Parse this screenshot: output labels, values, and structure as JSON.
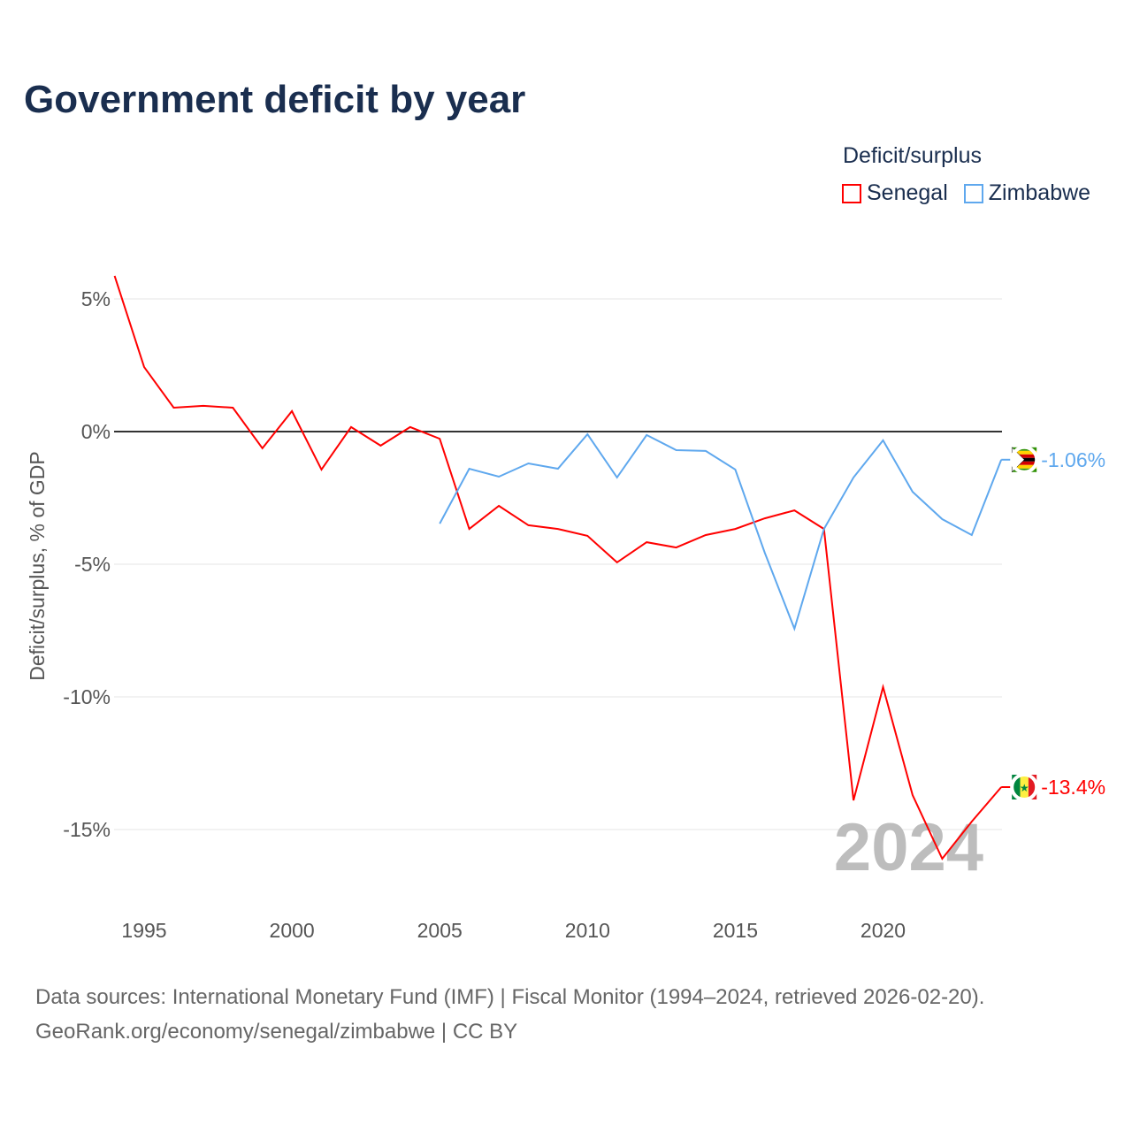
{
  "title": "Government deficit by year",
  "legend": {
    "title": "Deficit/surplus",
    "items": [
      {
        "name": "Senegal",
        "color": "#ff0000"
      },
      {
        "name": "Zimbabwe",
        "color": "#5fa8ee"
      }
    ]
  },
  "footer": {
    "line1": "Data sources: International Monetary Fund (IMF) | Fiscal Monitor (1994–2024, retrieved 2026-02-20).",
    "line2": "GeoRank.org/economy/senegal/zimbabwe | CC BY"
  },
  "chart_data": {
    "type": "line",
    "title": "Government deficit by year",
    "ylabel": "Deficit/surplus, % of GDP",
    "xlabel": "",
    "xlim": [
      1994,
      2024
    ],
    "ylim": [
      -17.5,
      6
    ],
    "yticks": [
      5,
      0,
      -5,
      -10,
      -15
    ],
    "ytick_labels": [
      "5%",
      "0%",
      "-5%",
      "-10%",
      "-15%"
    ],
    "xticks": [
      1995,
      2000,
      2005,
      2010,
      2015,
      2020
    ],
    "xtick_labels": [
      "1995",
      "2000",
      "2005",
      "2010",
      "2015",
      "2020"
    ],
    "watermark_year": "2024",
    "series": [
      {
        "name": "Senegal",
        "color": "#ff0000",
        "end_label": "-13.4%",
        "x": [
          1994,
          1995,
          1996,
          1997,
          1998,
          1999,
          2000,
          2001,
          2002,
          2003,
          2004,
          2005,
          2006,
          2007,
          2008,
          2009,
          2010,
          2011,
          2012,
          2013,
          2014,
          2015,
          2016,
          2017,
          2018,
          2019,
          2020,
          2021,
          2022,
          2023,
          2024
        ],
        "values": [
          5.87,
          2.43,
          0.9,
          0.97,
          0.9,
          -0.63,
          0.77,
          -1.43,
          0.17,
          -0.53,
          0.17,
          -0.27,
          -3.67,
          -2.8,
          -3.53,
          -3.67,
          -3.93,
          -4.93,
          -4.17,
          -4.37,
          -3.9,
          -3.67,
          -3.27,
          -2.97,
          -3.67,
          -13.9,
          -9.63,
          -13.7,
          -16.1,
          -14.7,
          -13.4
        ]
      },
      {
        "name": "Zimbabwe",
        "color": "#5fa8ee",
        "end_label": "-1.06%",
        "x": [
          2005,
          2006,
          2007,
          2008,
          2009,
          2010,
          2011,
          2012,
          2013,
          2014,
          2015,
          2016,
          2017,
          2018,
          2019,
          2020,
          2021,
          2022,
          2023,
          2024
        ],
        "values": [
          -3.47,
          -1.4,
          -1.7,
          -1.2,
          -1.4,
          -0.1,
          -1.73,
          -0.13,
          -0.7,
          -0.73,
          -1.43,
          -4.57,
          -7.43,
          -3.67,
          -1.73,
          -0.33,
          -2.27,
          -3.3,
          -3.9,
          -1.06
        ]
      }
    ]
  }
}
